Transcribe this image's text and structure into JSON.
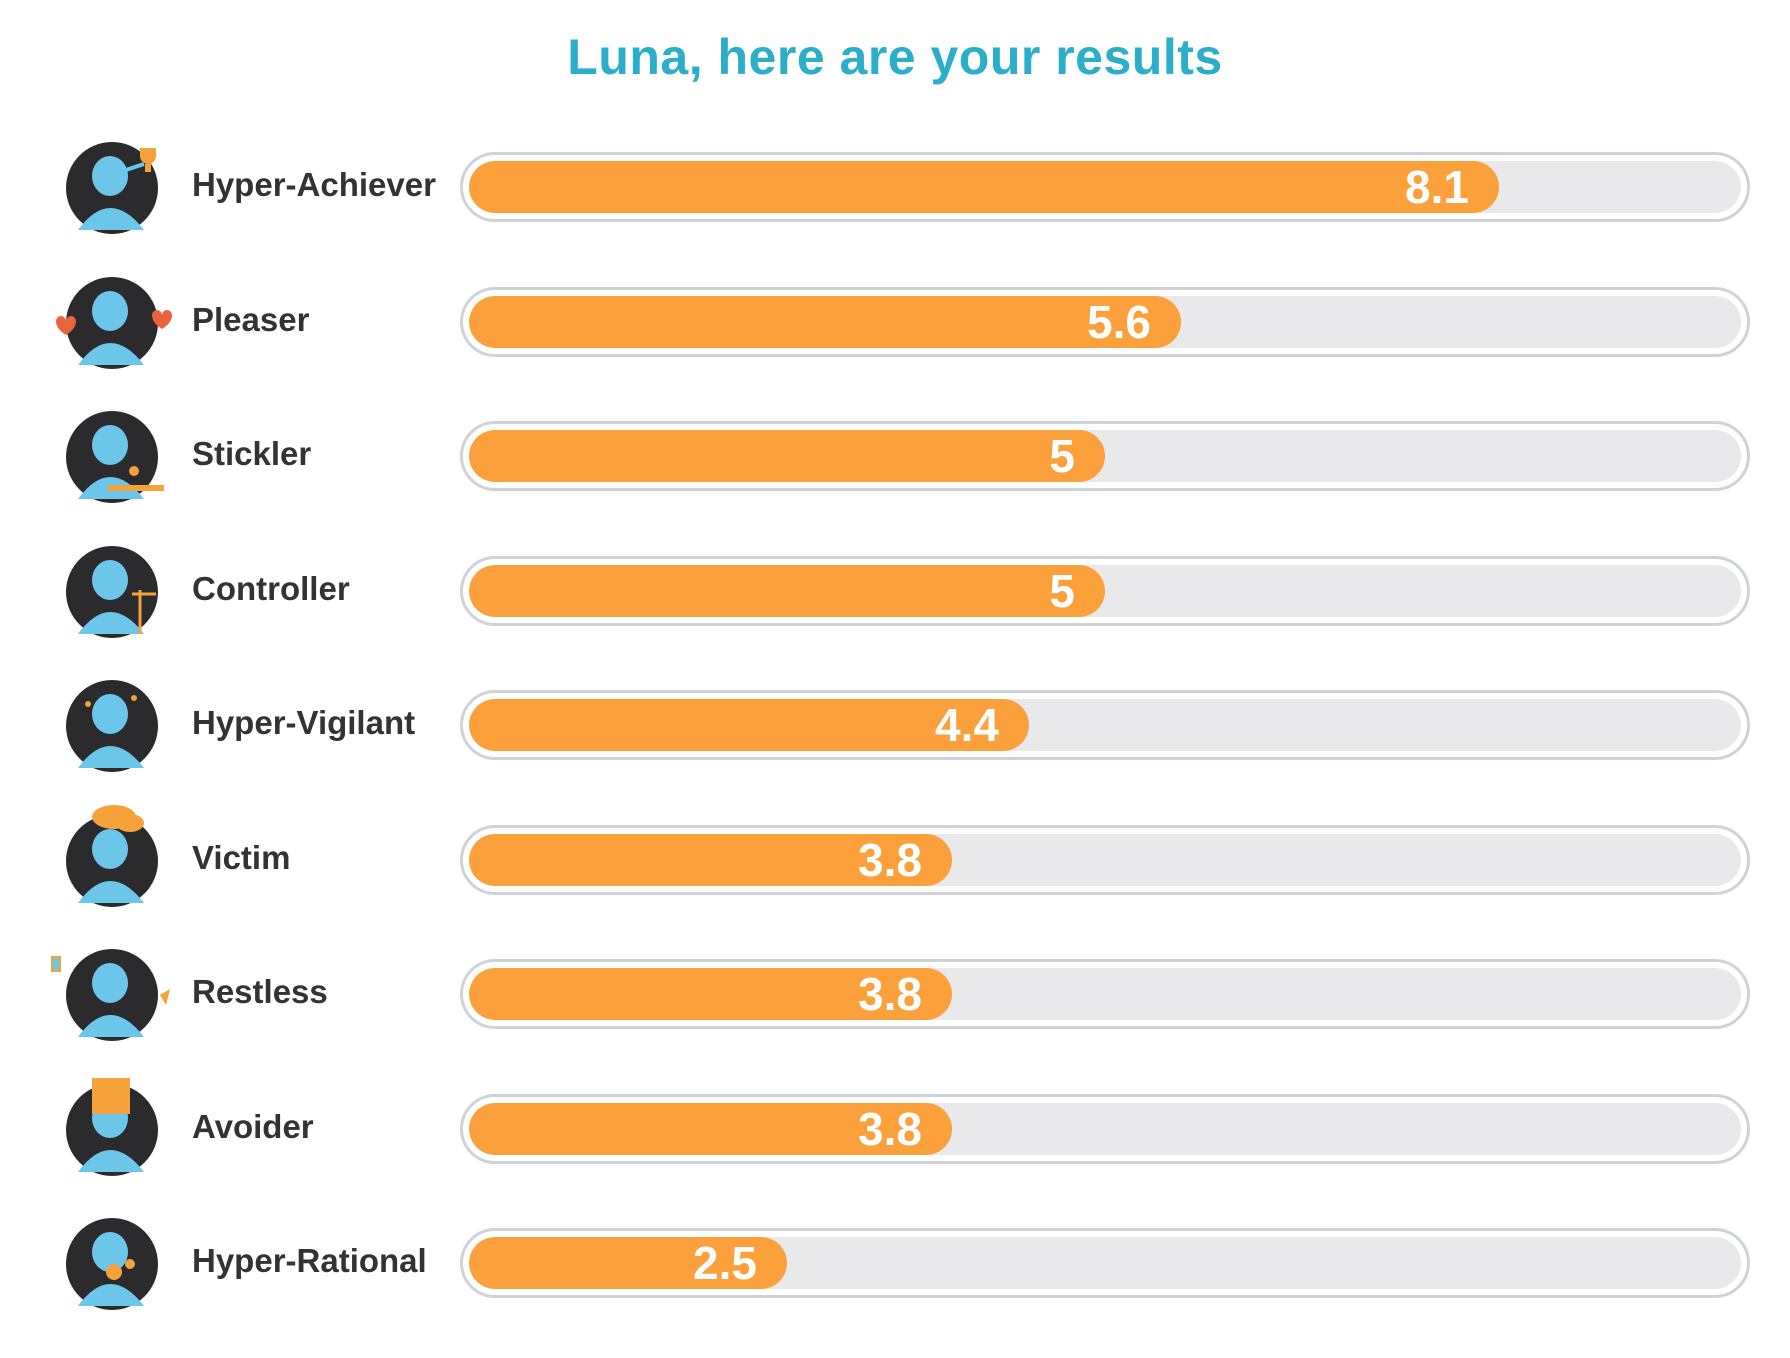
{
  "header": {
    "title": "Luna, here are your results"
  },
  "colors": {
    "title": "#2aaec9",
    "bar_fill": "#fba03a",
    "track": "#e9e9ec",
    "track_border": "#cfd2d8",
    "avatar_dark": "#2b2b2d",
    "avatar_blue": "#6cc6ea",
    "accent_orange": "#f6a23a"
  },
  "chart_data": {
    "type": "bar",
    "orientation": "horizontal",
    "title": "Luna, here are your results",
    "xlim": [
      0,
      10
    ],
    "grid": false,
    "categories": [
      "Hyper-Achiever",
      "Pleaser",
      "Stickler",
      "Controller",
      "Hyper-Vigilant",
      "Victim",
      "Restless",
      "Avoider",
      "Hyper-Rational"
    ],
    "values": [
      8.1,
      5.6,
      5,
      5,
      4.4,
      3.8,
      3.8,
      3.8,
      2.5
    ],
    "value_labels": [
      "8.1",
      "5.6",
      "5",
      "5",
      "4.4",
      "3.8",
      "3.8",
      "3.8",
      "2.5"
    ],
    "icons": [
      "hyper-achiever-avatar-icon",
      "pleaser-avatar-icon",
      "stickler-avatar-icon",
      "controller-avatar-icon",
      "hyper-vigilant-avatar-icon",
      "victim-avatar-icon",
      "restless-avatar-icon",
      "avoider-avatar-icon",
      "hyper-rational-avatar-icon"
    ]
  }
}
